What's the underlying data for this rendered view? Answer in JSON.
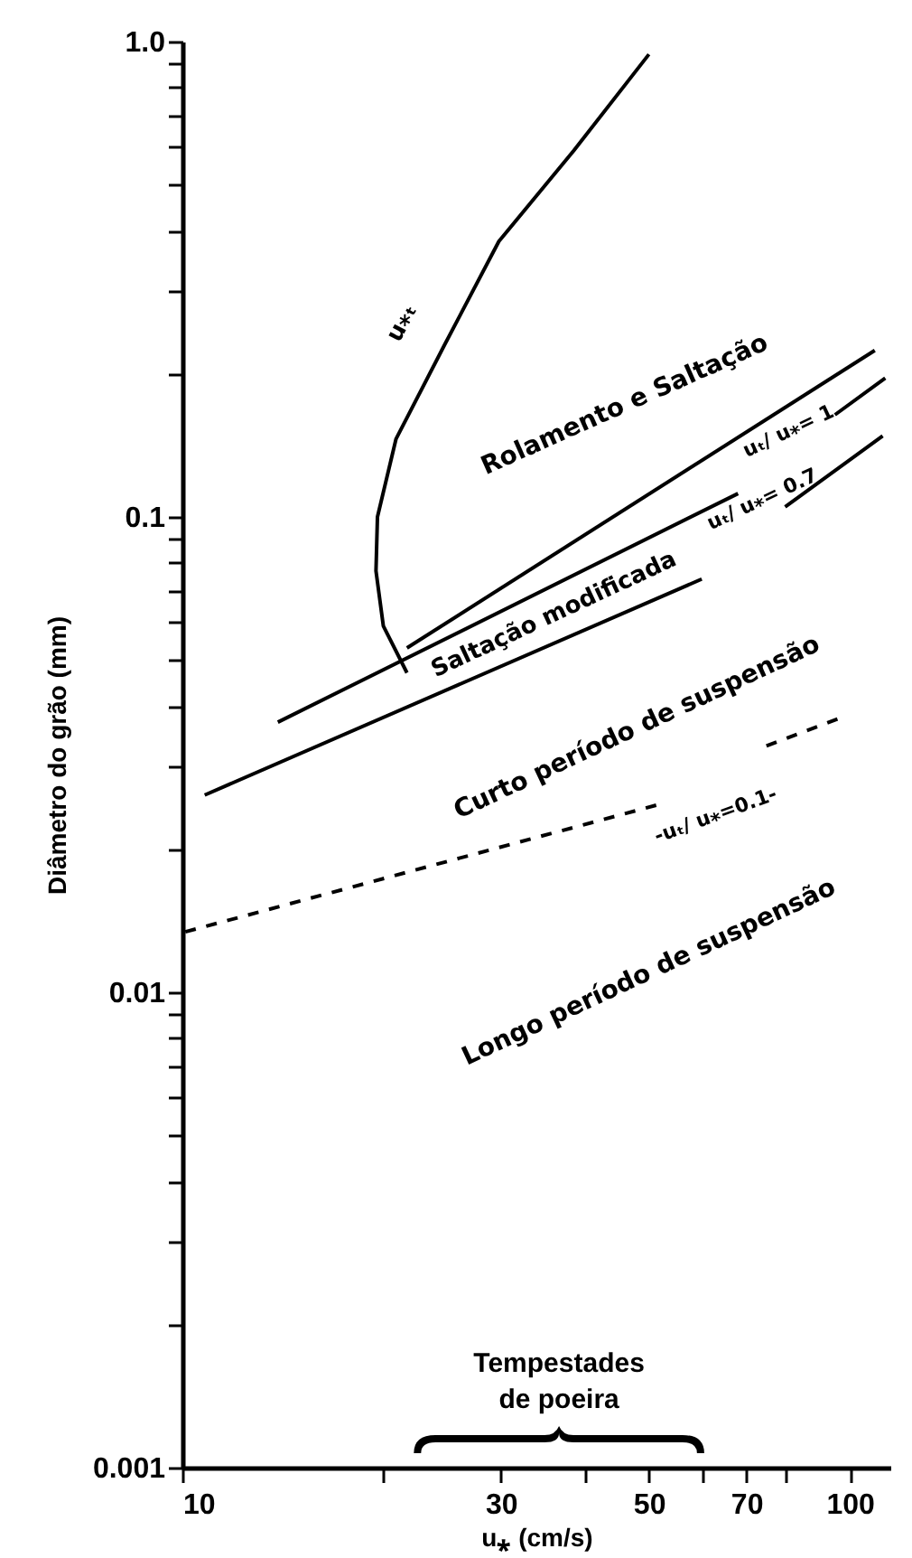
{
  "chart_data": {
    "type": "line",
    "xlabel": "u⁎ (cm/s)",
    "ylabel": "Diâmetro do grão (mm)",
    "log": "xy",
    "grid": false,
    "xlim": [
      10,
      115
    ],
    "ylim": [
      0.001,
      1
    ],
    "xticks": [
      10,
      {
        "value": 20,
        "label": null
      },
      30,
      {
        "value": 40,
        "label": null
      },
      50,
      {
        "value": 60,
        "label": null
      },
      70,
      {
        "value": 80,
        "label": null
      },
      100
    ],
    "yticks": [
      {
        "value": 0.001,
        "label": "0.001"
      },
      {
        "value": 0.002,
        "label": null
      },
      {
        "value": 0.003,
        "label": null
      },
      {
        "value": 0.004,
        "label": null
      },
      {
        "value": 0.005,
        "label": null
      },
      {
        "value": 0.006,
        "label": null
      },
      {
        "value": 0.007,
        "label": null
      },
      {
        "value": 0.008,
        "label": null
      },
      {
        "value": 0.009,
        "label": null
      },
      {
        "value": 0.01,
        "label": "0.01"
      },
      {
        "value": 0.02,
        "label": null
      },
      {
        "value": 0.03,
        "label": null
      },
      {
        "value": 0.04,
        "label": null
      },
      {
        "value": 0.05,
        "label": null
      },
      {
        "value": 0.06,
        "label": null
      },
      {
        "value": 0.07,
        "label": null
      },
      {
        "value": 0.08,
        "label": null
      },
      {
        "value": 0.09,
        "label": null
      },
      {
        "value": 0.1,
        "label": "0.1"
      },
      {
        "value": 0.2,
        "label": null
      },
      {
        "value": 0.3,
        "label": null
      },
      {
        "value": 0.4,
        "label": null
      },
      {
        "value": 0.5,
        "label": null
      },
      {
        "value": 0.6,
        "label": null
      },
      {
        "value": 0.7,
        "label": null
      },
      {
        "value": 0.8,
        "label": null
      },
      {
        "value": 0.9,
        "label": null
      },
      {
        "value": 1,
        "label": "1.0"
      }
    ],
    "series": [
      {
        "color": "#000000",
        "line_style": "solid",
        "x": [
          50,
          38.6,
          29.8,
          24.7,
          20.9,
          19.6,
          19.5,
          20,
          21.7
        ],
        "values": [
          0.94,
          0.59,
          0.38,
          0.23,
          0.146,
          0.1,
          0.077,
          0.059,
          0.047
        ]
      },
      {
        "color": "#000000",
        "line_style": "solid",
        "x": [
          21.7,
          109
        ],
        "values": [
          0.053,
          0.224
        ]
      },
      {
        "color": "#000000",
        "line_style": "solid",
        "x": [
          13.9,
          68,
          80,
          95,
          113
        ],
        "values": [
          0.037,
          0.112,
          null,
          0.164,
          0.196
        ]
      },
      {
        "color": "#000000",
        "line_style": "solid",
        "x": [
          10.8,
          60,
          70,
          80,
          112
        ],
        "values": [
          0.026,
          0.074,
          null,
          0.105,
          0.148
        ]
      },
      {
        "color": "#000000",
        "line_style": "dashed",
        "x": [
          10.1,
          52.7,
          63,
          75,
          98
        ],
        "values": [
          0.0134,
          0.025,
          null,
          0.033,
          0.038
        ]
      }
    ],
    "annotations": [
      "Rolamento e Saltação",
      "Saltação modificada",
      "Curto período de suspensão",
      "Longo período de suspensão",
      "u⁎ₜ",
      "uₜ/ u⁎= 1",
      "uₜ/ u⁎= 0.7",
      "-uₜ/ u⁎=0.1-",
      "Tempestades de poeira"
    ]
  }
}
